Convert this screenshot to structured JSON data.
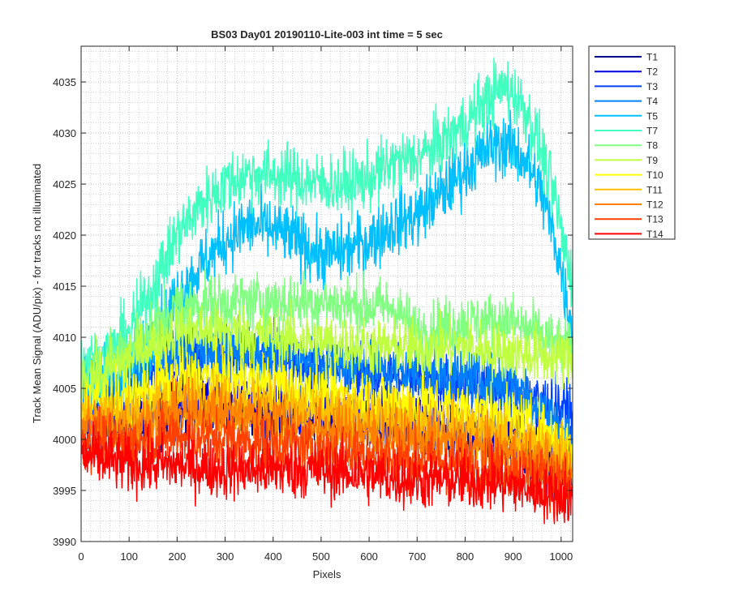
{
  "chart_data": {
    "type": "line",
    "title": "BS03 Day01 20190110-Lite-003 int time = 5 sec",
    "xlabel": "Pixels",
    "ylabel": "Track Mean Signal (ADU/pix) - for tracks not illuminated",
    "xlim": [
      0,
      1024
    ],
    "ylim": [
      3990,
      4038.5
    ],
    "xticks": [
      0,
      100,
      200,
      300,
      400,
      500,
      600,
      700,
      800,
      900,
      1000
    ],
    "yticks": [
      3990,
      3995,
      4000,
      4005,
      4010,
      4015,
      4020,
      4025,
      4030,
      4035
    ],
    "grid": true,
    "minor_grid": true,
    "legend_position": "outside-top-right",
    "series": [
      {
        "name": "T1",
        "color": "#00008f",
        "noise": 2.0,
        "x": [
          0,
          100,
          200,
          300,
          400,
          500,
          600,
          700,
          800,
          900,
          1000,
          1024
        ],
        "y": [
          4001.5,
          4001,
          4003,
          4003,
          4002.5,
          4002,
          4001.5,
          4001,
          4000.5,
          3999.5,
          3997,
          3996
        ]
      },
      {
        "name": "T2",
        "color": "#0000df",
        "noise": 2.0,
        "x": [
          0,
          100,
          200,
          300,
          400,
          500,
          600,
          700,
          800,
          900,
          1000,
          1024
        ],
        "y": [
          4002,
          4001.5,
          4004,
          4004,
          4003.5,
          4003,
          4002.5,
          4002,
          4001,
          4000.5,
          3999.5,
          3999
        ]
      },
      {
        "name": "T3",
        "color": "#0040ff",
        "noise": 2.0,
        "x": [
          0,
          50,
          100,
          200,
          300,
          400,
          500,
          600,
          700,
          800,
          900,
          1000,
          1024
        ],
        "y": [
          4004,
          4004.5,
          4005,
          4008.5,
          4008.5,
          4008,
          4007,
          4006.5,
          4006,
          4005.5,
          4004.5,
          4003,
          4002.5
        ]
      },
      {
        "name": "T4",
        "color": "#0080ff",
        "noise": 2.0,
        "x": [
          0,
          50,
          100,
          200,
          300,
          400,
          500,
          600,
          700,
          800,
          900,
          950,
          1000,
          1024
        ],
        "y": [
          4005,
          4005,
          4005.5,
          4008.5,
          4008.5,
          4008.5,
          4007.5,
          4007,
          4006.5,
          4006,
          4005.5,
          4003.5,
          4001,
          4000
        ]
      },
      {
        "name": "T5",
        "color": "#00bfff",
        "noise": 2.2,
        "x": [
          0,
          50,
          100,
          150,
          200,
          250,
          300,
          350,
          400,
          450,
          500,
          550,
          600,
          650,
          700,
          750,
          800,
          850,
          880,
          900,
          930,
          960,
          990,
          1010,
          1024
        ],
        "y": [
          4006,
          4006,
          4007,
          4010,
          4014,
          4017,
          4019.5,
          4021,
          4020.5,
          4019.5,
          4018,
          4018.5,
          4019.5,
          4021,
          4022,
          4024,
          4026.5,
          4028.5,
          4029,
          4028.5,
          4027,
          4024,
          4019,
          4014,
          4011
        ]
      },
      {
        "name": "T7",
        "color": "#40ffbf",
        "noise": 2.2,
        "x": [
          0,
          50,
          100,
          150,
          200,
          250,
          300,
          350,
          400,
          450,
          500,
          550,
          600,
          650,
          700,
          750,
          800,
          850,
          880,
          900,
          930,
          960,
          990,
          1010,
          1024
        ],
        "y": [
          4007.5,
          4008,
          4010.5,
          4015,
          4020,
          4023,
          4025,
          4026,
          4026,
          4025.5,
          4025,
          4025,
          4025.5,
          4027,
          4027.5,
          4029,
          4031,
          4033.5,
          4034.5,
          4034,
          4032,
          4028,
          4023,
          4018,
          4016
        ]
      },
      {
        "name": "T8",
        "color": "#80ff80",
        "noise": 2.0,
        "x": [
          0,
          50,
          100,
          200,
          300,
          400,
          500,
          600,
          650,
          700,
          800,
          900,
          1000,
          1024
        ],
        "y": [
          4006,
          4007,
          4009,
          4013,
          4013.5,
          4013.5,
          4013.5,
          4013,
          4013,
          4010.5,
          4011.5,
          4011.5,
          4009,
          4008.5
        ]
      },
      {
        "name": "T9",
        "color": "#bfff40",
        "noise": 2.0,
        "x": [
          0,
          50,
          100,
          200,
          300,
          400,
          500,
          600,
          650,
          700,
          800,
          900,
          1000,
          1024
        ],
        "y": [
          4005.5,
          4006.5,
          4008,
          4010.5,
          4010.5,
          4010,
          4009.5,
          4009,
          4009,
          4009,
          4009,
          4008.5,
          4008,
          4007.5
        ]
      },
      {
        "name": "T10",
        "color": "#ffff00",
        "noise": 2.0,
        "x": [
          0,
          100,
          200,
          300,
          400,
          500,
          600,
          700,
          800,
          900,
          1000,
          1024
        ],
        "y": [
          4003.5,
          4004,
          4006,
          4006,
          4005.5,
          4004.5,
          4004,
          4003.5,
          4003,
          4002,
          4000,
          3999.5
        ]
      },
      {
        "name": "T11",
        "color": "#ffbf00",
        "noise": 2.0,
        "x": [
          0,
          100,
          200,
          300,
          400,
          500,
          600,
          700,
          800,
          900,
          1000,
          1024
        ],
        "y": [
          4002.5,
          4002.5,
          4004,
          4004,
          4003.5,
          4002.5,
          4002,
          4001.5,
          4001,
          4000,
          3998.5,
          3998
        ]
      },
      {
        "name": "T12",
        "color": "#ff8000",
        "noise": 2.0,
        "x": [
          0,
          100,
          200,
          300,
          400,
          500,
          600,
          700,
          800,
          900,
          1000,
          1024
        ],
        "y": [
          4001.5,
          4001,
          4002.5,
          4002.5,
          4002,
          4001,
          4000.5,
          4000,
          3999.5,
          3998.5,
          3997,
          3996.5
        ]
      },
      {
        "name": "T13",
        "color": "#ff4000",
        "noise": 2.0,
        "x": [
          0,
          100,
          200,
          300,
          400,
          500,
          600,
          700,
          800,
          900,
          1000,
          1024
        ],
        "y": [
          4000,
          3999.5,
          4000.5,
          4000,
          3999.5,
          3999,
          3998.5,
          3998,
          3997.5,
          3997,
          3996,
          3995.5
        ]
      },
      {
        "name": "T14",
        "color": "#ff0000",
        "noise": 2.0,
        "x": [
          0,
          100,
          200,
          300,
          400,
          500,
          600,
          700,
          800,
          900,
          1000,
          1024
        ],
        "y": [
          3998.5,
          3997.5,
          3997.5,
          3997,
          3997,
          3997,
          3996.5,
          3996,
          3996,
          3995.5,
          3994.5,
          3994
        ]
      }
    ]
  }
}
